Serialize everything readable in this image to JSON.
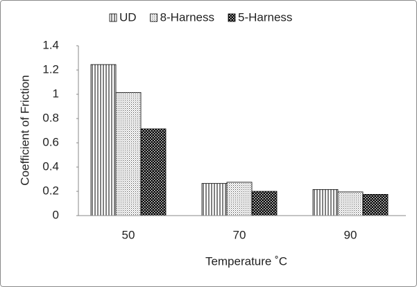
{
  "chart_data": {
    "type": "bar",
    "xlabel": "Temperature ˚C",
    "ylabel": "Coefficient of Friction",
    "categories": [
      "50",
      "70",
      "90"
    ],
    "series": [
      {
        "name": "UD",
        "color": "#000000",
        "values": [
          1.245,
          0.265,
          0.215
        ]
      },
      {
        "name": "8-Harness",
        "color": "#000000",
        "values": [
          1.015,
          0.275,
          0.195
        ]
      },
      {
        "name": "5-Harness",
        "color": "#000000",
        "values": [
          0.715,
          0.2,
          0.175
        ]
      }
    ],
    "ylim": [
      0,
      1.4
    ],
    "yticks": [
      0,
      0.2,
      0.4,
      0.6,
      0.8,
      1,
      1.2,
      1.4
    ],
    "grid": false,
    "legend": "top"
  }
}
